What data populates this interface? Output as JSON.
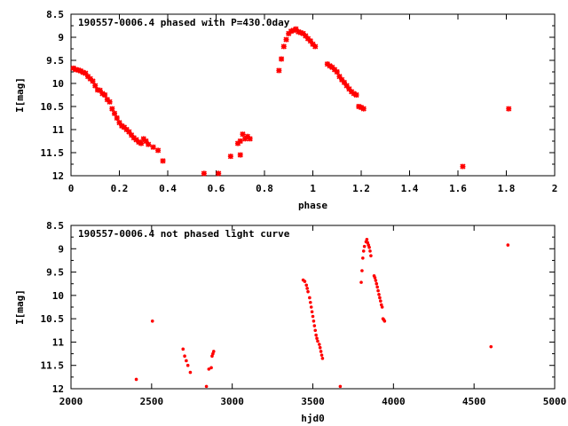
{
  "chart_data": [
    {
      "type": "scatter",
      "title": "190557-0006.4 phased with P=430.0day",
      "xlabel": "phase",
      "ylabel": "I[mag]",
      "xlim": [
        0,
        2
      ],
      "ylim": [
        12,
        8.5
      ],
      "y_inverted": true,
      "xticks": [
        0,
        0.2,
        0.4,
        0.6,
        0.8,
        1,
        1.2,
        1.4,
        1.6,
        1.8,
        2
      ],
      "xtick_labels": [
        "0",
        "0.2",
        "0.4",
        "0.6",
        "0.8",
        "1",
        "1.2",
        "1.4",
        "1.6",
        "1.8",
        "2"
      ],
      "yticks": [
        8.5,
        9,
        9.5,
        10,
        10.5,
        11,
        11.5,
        12
      ],
      "ytick_labels": [
        "8.5",
        "9",
        "9.5",
        "10",
        "10.5",
        "11",
        "11.5",
        "12"
      ],
      "grid": false,
      "marker_color": "#ff0000",
      "marker": "plus-cross",
      "points": [
        [
          0.01,
          9.67
        ],
        [
          0.02,
          9.7
        ],
        [
          0.03,
          9.71
        ],
        [
          0.04,
          9.73
        ],
        [
          0.05,
          9.76
        ],
        [
          0.06,
          9.78
        ],
        [
          0.07,
          9.85
        ],
        [
          0.08,
          9.9
        ],
        [
          0.09,
          9.95
        ],
        [
          0.1,
          10.05
        ],
        [
          0.11,
          10.14
        ],
        [
          0.12,
          10.15
        ],
        [
          0.13,
          10.22
        ],
        [
          0.14,
          10.25
        ],
        [
          0.15,
          10.35
        ],
        [
          0.16,
          10.4
        ],
        [
          0.17,
          10.55
        ],
        [
          0.18,
          10.65
        ],
        [
          0.19,
          10.75
        ],
        [
          0.2,
          10.85
        ],
        [
          0.21,
          10.92
        ],
        [
          0.22,
          10.95
        ],
        [
          0.23,
          11.0
        ],
        [
          0.24,
          11.05
        ],
        [
          0.25,
          11.12
        ],
        [
          0.26,
          11.18
        ],
        [
          0.27,
          11.22
        ],
        [
          0.28,
          11.27
        ],
        [
          0.29,
          11.3
        ],
        [
          0.3,
          11.2
        ],
        [
          0.31,
          11.25
        ],
        [
          0.32,
          11.32
        ],
        [
          0.34,
          11.38
        ],
        [
          0.36,
          11.45
        ],
        [
          0.38,
          11.68
        ],
        [
          0.55,
          11.95
        ],
        [
          0.61,
          11.95
        ],
        [
          0.66,
          11.58
        ],
        [
          0.69,
          11.3
        ],
        [
          0.7,
          11.25
        ],
        [
          0.71,
          11.1
        ],
        [
          0.72,
          11.2
        ],
        [
          0.73,
          11.15
        ],
        [
          0.74,
          11.2
        ],
        [
          0.7,
          11.55
        ],
        [
          0.86,
          9.72
        ],
        [
          0.87,
          9.47
        ],
        [
          0.88,
          9.2
        ],
        [
          0.89,
          9.05
        ],
        [
          0.9,
          8.92
        ],
        [
          0.91,
          8.87
        ],
        [
          0.92,
          8.85
        ],
        [
          0.93,
          8.82
        ],
        [
          0.94,
          8.88
        ],
        [
          0.95,
          8.9
        ],
        [
          0.96,
          8.92
        ],
        [
          0.97,
          8.97
        ],
        [
          0.98,
          9.03
        ],
        [
          0.99,
          9.08
        ],
        [
          1.0,
          9.15
        ],
        [
          1.01,
          9.2
        ],
        [
          1.06,
          9.58
        ],
        [
          1.07,
          9.62
        ],
        [
          1.08,
          9.65
        ],
        [
          1.09,
          9.7
        ],
        [
          1.1,
          9.75
        ],
        [
          1.11,
          9.85
        ],
        [
          1.12,
          9.92
        ],
        [
          1.13,
          9.98
        ],
        [
          1.14,
          10.05
        ],
        [
          1.15,
          10.12
        ],
        [
          1.16,
          10.18
        ],
        [
          1.17,
          10.22
        ],
        [
          1.18,
          10.25
        ],
        [
          1.19,
          10.5
        ],
        [
          1.2,
          10.52
        ],
        [
          1.21,
          10.55
        ],
        [
          1.62,
          11.8
        ],
        [
          1.81,
          10.55
        ]
      ]
    },
    {
      "type": "scatter",
      "title": "190557-0006.4 not phased light curve",
      "xlabel": "hjd0",
      "ylabel": "I[mag]",
      "xlim": [
        2000,
        5000
      ],
      "ylim": [
        12,
        8.5
      ],
      "y_inverted": true,
      "xticks": [
        2000,
        2500,
        3000,
        3500,
        4000,
        4500,
        5000
      ],
      "xtick_labels": [
        "2000",
        "2500",
        "3000",
        "3500",
        "4000",
        "4500",
        "5000"
      ],
      "yticks": [
        8.5,
        9,
        9.5,
        10,
        10.5,
        11,
        11.5,
        12
      ],
      "ytick_labels": [
        "8.5",
        "9",
        "9.5",
        "10",
        "10.5",
        "11",
        "11.5",
        "12"
      ],
      "grid": false,
      "marker_color": "#ff0000",
      "marker": "dot",
      "points": [
        [
          2405,
          11.8
        ],
        [
          2505,
          10.55
        ],
        [
          2695,
          11.15
        ],
        [
          2705,
          11.3
        ],
        [
          2715,
          11.4
        ],
        [
          2725,
          11.5
        ],
        [
          2740,
          11.65
        ],
        [
          2840,
          11.95
        ],
        [
          2855,
          11.58
        ],
        [
          2870,
          11.55
        ],
        [
          2875,
          11.3
        ],
        [
          2880,
          11.25
        ],
        [
          2885,
          11.2
        ],
        [
          3440,
          9.67
        ],
        [
          3450,
          9.7
        ],
        [
          3460,
          9.78
        ],
        [
          3465,
          9.85
        ],
        [
          3470,
          9.92
        ],
        [
          3480,
          10.05
        ],
        [
          3485,
          10.15
        ],
        [
          3490,
          10.25
        ],
        [
          3495,
          10.35
        ],
        [
          3500,
          10.45
        ],
        [
          3505,
          10.55
        ],
        [
          3510,
          10.65
        ],
        [
          3515,
          10.75
        ],
        [
          3520,
          10.85
        ],
        [
          3525,
          10.92
        ],
        [
          3530,
          10.98
        ],
        [
          3540,
          11.05
        ],
        [
          3545,
          11.12
        ],
        [
          3550,
          11.2
        ],
        [
          3555,
          11.28
        ],
        [
          3560,
          11.35
        ],
        [
          3670,
          11.95
        ],
        [
          3800,
          9.72
        ],
        [
          3805,
          9.47
        ],
        [
          3810,
          9.2
        ],
        [
          3815,
          9.05
        ],
        [
          3820,
          8.95
        ],
        [
          3830,
          8.85
        ],
        [
          3835,
          8.8
        ],
        [
          3840,
          8.87
        ],
        [
          3845,
          8.92
        ],
        [
          3850,
          8.97
        ],
        [
          3855,
          9.05
        ],
        [
          3860,
          9.15
        ],
        [
          3880,
          9.58
        ],
        [
          3885,
          9.62
        ],
        [
          3890,
          9.68
        ],
        [
          3895,
          9.75
        ],
        [
          3900,
          9.82
        ],
        [
          3905,
          9.9
        ],
        [
          3910,
          9.98
        ],
        [
          3915,
          10.05
        ],
        [
          3920,
          10.12
        ],
        [
          3925,
          10.2
        ],
        [
          3930,
          10.25
        ],
        [
          3935,
          10.5
        ],
        [
          3940,
          10.52
        ],
        [
          3945,
          10.55
        ],
        [
          4605,
          11.1
        ],
        [
          4710,
          8.92
        ]
      ]
    }
  ]
}
